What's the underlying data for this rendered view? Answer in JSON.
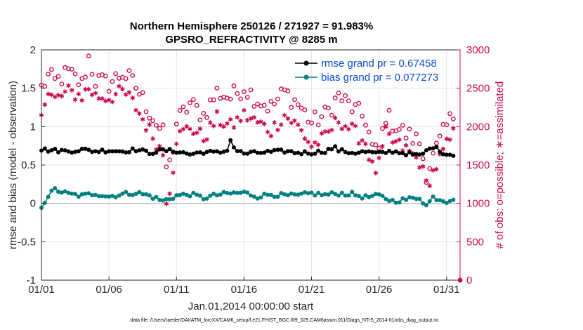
{
  "chart_data": {
    "type": "line",
    "title_line1": "Northern Hemisphere 250126 / 271927 = 91.983%",
    "title_line2": "GPSRO_REFRACTIVITY @ 8285 m",
    "xlabel": "Jan.01,2014 00:00:00 start",
    "ylabel_left": "rmse and bias (model - observation)",
    "ylabel_right": "# of obs: o=possible; ∗=assimilated",
    "xlim": [
      1,
      32
    ],
    "ylim_left": [
      -1,
      2
    ],
    "ylim_right": [
      0,
      3000
    ],
    "grid": true,
    "x_tick_values": [
      1,
      6,
      11,
      16,
      21,
      26,
      31
    ],
    "x_tick_labels": [
      "01/01",
      "01/06",
      "01/11",
      "01/16",
      "01/21",
      "01/26",
      "01/31"
    ],
    "y_left_tick_values": [
      -1,
      -0.5,
      0,
      0.5,
      1,
      1.5,
      2
    ],
    "y_left_tick_labels": [
      "-1",
      "-0.5",
      "0",
      "0.5",
      "1",
      "1.5",
      "2"
    ],
    "y_right_tick_values": [
      0,
      500,
      1000,
      1500,
      2000,
      2500,
      3000
    ],
    "y_right_tick_labels": [
      "0",
      "500",
      "1000",
      "1500",
      "2000",
      "2500",
      "3000"
    ],
    "legend": [
      {
        "label": "rmse grand pr = 0.67458",
        "color": "#000000"
      },
      {
        "label": "bias grand pr = 0.077273",
        "color": "#008080"
      }
    ],
    "legend_position": "top-right",
    "series": [
      {
        "name": "rmse",
        "axis": "left",
        "color": "#000000",
        "marker": "filled-circle",
        "anchors_x": [
          1,
          2,
          3,
          4,
          5,
          6,
          7,
          8,
          9,
          10,
          11,
          12,
          13,
          14,
          14.7,
          15,
          15.4,
          16,
          17,
          18,
          19,
          20,
          21,
          22,
          22.7,
          23,
          24,
          25,
          26,
          27,
          28,
          29,
          30,
          31,
          31.5
        ],
        "anchors_y": [
          0.7,
          0.69,
          0.68,
          0.7,
          0.68,
          0.69,
          0.68,
          0.7,
          0.66,
          0.69,
          0.68,
          0.64,
          0.67,
          0.66,
          0.68,
          0.82,
          0.69,
          0.65,
          0.66,
          0.67,
          0.68,
          0.66,
          0.66,
          0.68,
          0.73,
          0.69,
          0.66,
          0.67,
          0.65,
          0.68,
          0.65,
          0.62,
          0.74,
          0.64,
          0.64
        ],
        "points_per_day": 4
      },
      {
        "name": "bias",
        "axis": "left",
        "color": "#008080",
        "marker": "filled-circle",
        "anchors_x": [
          1,
          1.5,
          2,
          3,
          4,
          5,
          6,
          7,
          8,
          9,
          10,
          11,
          12,
          13,
          14,
          15,
          16,
          17,
          18,
          19,
          20,
          21,
          22,
          23,
          24,
          25,
          26,
          27,
          28,
          29,
          29.5,
          30,
          31,
          31.5
        ],
        "anchors_y": [
          -0.04,
          0.1,
          0.18,
          0.12,
          0.1,
          0.13,
          0.09,
          0.12,
          0.14,
          0.1,
          0.03,
          0.1,
          0.12,
          0.07,
          0.11,
          0.13,
          0.14,
          0.09,
          0.12,
          0.1,
          0.1,
          0.13,
          0.11,
          0.13,
          0.12,
          0.08,
          0.1,
          0.03,
          0.05,
          0.08,
          -0.03,
          0.08,
          0.03,
          0.07
        ],
        "points_per_day": 4
      },
      {
        "name": "possible obs",
        "axis": "right",
        "color": "#cc0a52",
        "marker": "open-circle",
        "anchors_x": [
          1,
          1.5,
          2,
          3,
          4,
          4.5,
          5,
          6,
          7,
          7.5,
          8,
          9,
          9.5,
          10,
          10.3,
          10.6,
          11,
          12,
          13,
          14,
          15,
          16,
          17,
          18,
          19,
          20,
          21,
          22,
          23,
          24,
          25,
          25.6,
          26,
          26.5,
          27,
          28,
          29,
          29.5,
          30,
          31,
          31.5
        ],
        "anchors_y": [
          2500,
          2650,
          2580,
          2700,
          2550,
          2900,
          2600,
          2560,
          2700,
          2620,
          2520,
          2200,
          2050,
          1900,
          1400,
          1550,
          2050,
          2300,
          2150,
          2450,
          2380,
          2520,
          2350,
          2250,
          2450,
          2300,
          2050,
          2150,
          2400,
          2250,
          2100,
          1650,
          1700,
          2150,
          2050,
          1900,
          1800,
          1400,
          1600,
          2000,
          2150
        ],
        "points_per_day": 4
      },
      {
        "name": "assimilated obs",
        "axis": "right",
        "color": "#cc0a52",
        "marker": "asterisk",
        "anchors_x": [
          1,
          1.5,
          2,
          3,
          4,
          4.5,
          5,
          6,
          7,
          7.5,
          8,
          9,
          9.5,
          10,
          10.2,
          10.6,
          11,
          12,
          13,
          14,
          15,
          16,
          17,
          18,
          19,
          20,
          21,
          22,
          23,
          24,
          25,
          25.6,
          26,
          26.5,
          27,
          28,
          29,
          29.5,
          30,
          31,
          31.5
        ],
        "anchors_y": [
          2250,
          2420,
          2350,
          2450,
          2400,
          2500,
          2400,
          2380,
          2450,
          2380,
          2250,
          1950,
          1800,
          1650,
          1050,
          1250,
          1850,
          2000,
          1850,
          2100,
          2000,
          2150,
          2050,
          1950,
          2150,
          2000,
          1750,
          1850,
          2100,
          1950,
          1800,
          1400,
          1500,
          1900,
          1800,
          1700,
          1550,
          1250,
          1400,
          1750,
          1900
        ],
        "points_per_day": 4
      }
    ],
    "annotations": [
      {
        "text": "data file: /Users/raeder/DAI/ATM_forcXX/CAM6_setup/f.e21.FHIST_BGC.f09_025.CAM6assim.011/Diags_NTrS_2014-01/obs_diag_output.nc"
      }
    ]
  }
}
